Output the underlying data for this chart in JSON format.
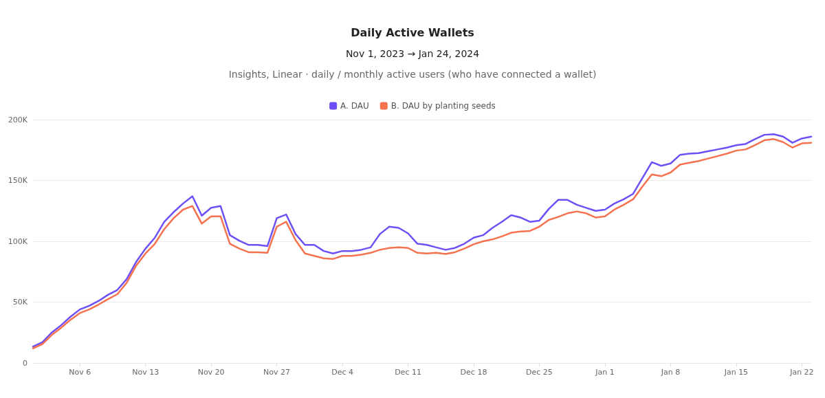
{
  "chart_data": {
    "type": "line",
    "title": "Daily Active Wallets",
    "subtitle": "Nov 1, 2023 → Jan 24, 2024",
    "annotations": [
      "Insights, Linear · daily / monthly active users (who have connected a wallet)"
    ],
    "x": [
      "2023-11-01",
      "2023-11-02",
      "2023-11-03",
      "2023-11-04",
      "2023-11-05",
      "2023-11-06",
      "2023-11-07",
      "2023-11-08",
      "2023-11-09",
      "2023-11-10",
      "2023-11-11",
      "2023-11-12",
      "2023-11-13",
      "2023-11-14",
      "2023-11-15",
      "2023-11-16",
      "2023-11-17",
      "2023-11-18",
      "2023-11-19",
      "2023-11-20",
      "2023-11-21",
      "2023-11-22",
      "2023-11-23",
      "2023-11-24",
      "2023-11-25",
      "2023-11-26",
      "2023-11-27",
      "2023-11-28",
      "2023-11-29",
      "2023-11-30",
      "2023-12-01",
      "2023-12-02",
      "2023-12-03",
      "2023-12-04",
      "2023-12-05",
      "2023-12-06",
      "2023-12-07",
      "2023-12-08",
      "2023-12-09",
      "2023-12-10",
      "2023-12-11",
      "2023-12-12",
      "2023-12-13",
      "2023-12-14",
      "2023-12-15",
      "2023-12-16",
      "2023-12-17",
      "2023-12-18",
      "2023-12-19",
      "2023-12-20",
      "2023-12-21",
      "2023-12-22",
      "2023-12-23",
      "2023-12-24",
      "2023-12-25",
      "2023-12-26",
      "2023-12-27",
      "2023-12-28",
      "2023-12-29",
      "2023-12-30",
      "2023-12-31",
      "2024-01-01",
      "2024-01-02",
      "2024-01-03",
      "2024-01-04",
      "2024-01-05",
      "2024-01-06",
      "2024-01-07",
      "2024-01-08",
      "2024-01-09",
      "2024-01-10",
      "2024-01-11",
      "2024-01-12",
      "2024-01-13",
      "2024-01-14",
      "2024-01-15",
      "2024-01-16",
      "2024-01-17",
      "2024-01-18",
      "2024-01-19",
      "2024-01-20",
      "2024-01-21",
      "2024-01-22",
      "2024-01-23"
    ],
    "series": [
      {
        "name": "A. DAU",
        "color": "#6e4ff6",
        "values": [
          13500,
          17000,
          25000,
          31000,
          38000,
          44000,
          47000,
          51000,
          56000,
          60000,
          69000,
          83000,
          94000,
          103000,
          116000,
          124000,
          131000,
          137000,
          121000,
          127500,
          129000,
          105000,
          100500,
          97000,
          97000,
          96000,
          119000,
          122000,
          106000,
          97000,
          97000,
          92000,
          90000,
          92000,
          92000,
          93000,
          95000,
          106000,
          112000,
          111000,
          106500,
          98000,
          97000,
          95000,
          93000,
          94500,
          98000,
          103000,
          105000,
          111000,
          116000,
          121500,
          119500,
          116000,
          117000,
          126500,
          134000,
          134000,
          130000,
          127500,
          125000,
          126000,
          131000,
          134500,
          139000,
          152000,
          165000,
          162000,
          164000,
          171000,
          172000,
          172500,
          174000,
          175500,
          177000,
          179000,
          180000,
          184000,
          187500,
          188000,
          186000,
          181000,
          184500,
          186000
        ]
      },
      {
        "name": "B. DAU by planting seeds",
        "color": "#f6714e",
        "values": [
          12000,
          15500,
          23000,
          29000,
          35500,
          41000,
          44000,
          48000,
          52500,
          56500,
          66000,
          80000,
          90000,
          98000,
          110000,
          119000,
          126000,
          129000,
          114500,
          120500,
          120500,
          98000,
          94000,
          91000,
          91000,
          90500,
          112000,
          116000,
          101000,
          90000,
          88000,
          86000,
          85500,
          88000,
          88000,
          89000,
          90500,
          93000,
          94500,
          95000,
          94500,
          90500,
          90000,
          90500,
          89500,
          91000,
          94000,
          97500,
          100000,
          101500,
          104000,
          107000,
          108000,
          108500,
          112000,
          117500,
          120000,
          123000,
          124500,
          123000,
          119500,
          120500,
          126000,
          130000,
          134500,
          145000,
          155000,
          153500,
          156500,
          163000,
          164500,
          166000,
          168000,
          170000,
          172000,
          174500,
          175500,
          179000,
          183000,
          184000,
          181500,
          177000,
          180500,
          181000
        ]
      }
    ],
    "xlim": [
      "2023-11-01",
      "2024-01-23"
    ],
    "xticks": [
      {
        "value": "2023-11-06",
        "label": "Nov 6"
      },
      {
        "value": "2023-11-13",
        "label": "Nov 13"
      },
      {
        "value": "2023-11-20",
        "label": "Nov 20"
      },
      {
        "value": "2023-11-27",
        "label": "Nov 27"
      },
      {
        "value": "2023-12-04",
        "label": "Dec 4"
      },
      {
        "value": "2023-12-11",
        "label": "Dec 11"
      },
      {
        "value": "2023-12-18",
        "label": "Dec 18"
      },
      {
        "value": "2023-12-25",
        "label": "Dec 25"
      },
      {
        "value": "2024-01-01",
        "label": "Jan 1"
      },
      {
        "value": "2024-01-08",
        "label": "Jan 8"
      },
      {
        "value": "2024-01-15",
        "label": "Jan 15"
      },
      {
        "value": "2024-01-22",
        "label": "Jan 22"
      }
    ],
    "ylim": [
      0,
      200000
    ],
    "yticks": [
      0,
      {
        "value": 50000,
        "label": "50K"
      },
      {
        "value": 100000,
        "label": "100K"
      },
      {
        "value": 150000,
        "label": "150K"
      },
      {
        "value": 200000,
        "label": "200K"
      }
    ],
    "grid": "y",
    "legend": "top",
    "marker": "none",
    "line_style": "solid"
  }
}
